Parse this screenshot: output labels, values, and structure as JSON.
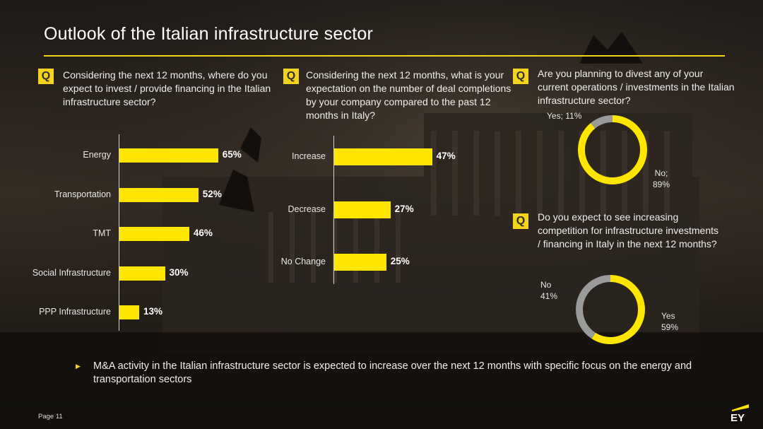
{
  "title": "Outlook of the Italian infrastructure sector",
  "q_label": "Q",
  "questions": {
    "invest": "Considering the next 12 months, where do you expect to invest / provide financing in the Italian infrastructure sector?",
    "deals": "Considering the next 12 months, what is your expectation on the number of deal completions by your company compared to the past 12 months in Italy?",
    "divest": "Are you planning to divest any of your current operations / investments in the Italian infrastructure sector?",
    "competition": "Do you expect to see increasing competition for infrastructure investments / financing in Italy in the next 12 months?"
  },
  "bullet": "M&A activity in the Italian infrastructure sector is expected to increase over the next 12 months with specific focus on the energy and transportation sectors",
  "footer": {
    "page": "Page 11",
    "logo": "EY"
  },
  "colors": {
    "accent": "#ffe600",
    "rule": "#f3d31b",
    "donut_rest": "#9a9a9a",
    "text": "#ffffff"
  },
  "chart_data": [
    {
      "type": "bar",
      "orientation": "horizontal",
      "categories": [
        "Energy",
        "Transportation",
        "TMT",
        "Social Infrastructure",
        "PPP Infrastructure"
      ],
      "values": [
        65,
        52,
        46,
        30,
        13
      ],
      "value_labels": [
        "65%",
        "52%",
        "46%",
        "30%",
        "13%"
      ],
      "unit": "%"
    },
    {
      "type": "bar",
      "orientation": "horizontal",
      "categories": [
        "Increase",
        "Decrease",
        "No Change"
      ],
      "values": [
        47,
        27,
        25
      ],
      "value_labels": [
        "47%",
        "27%",
        "25%"
      ],
      "unit": "%"
    },
    {
      "type": "pie",
      "donut": true,
      "slices": [
        {
          "label": "Yes; 11%",
          "value": 11
        },
        {
          "label_lines": [
            "No;",
            "89%"
          ],
          "value": 89
        }
      ]
    },
    {
      "type": "pie",
      "donut": true,
      "slices": [
        {
          "label_lines": [
            "Yes",
            "59%"
          ],
          "value": 59
        },
        {
          "label_lines": [
            "No",
            "41%"
          ],
          "value": 41
        }
      ]
    }
  ]
}
